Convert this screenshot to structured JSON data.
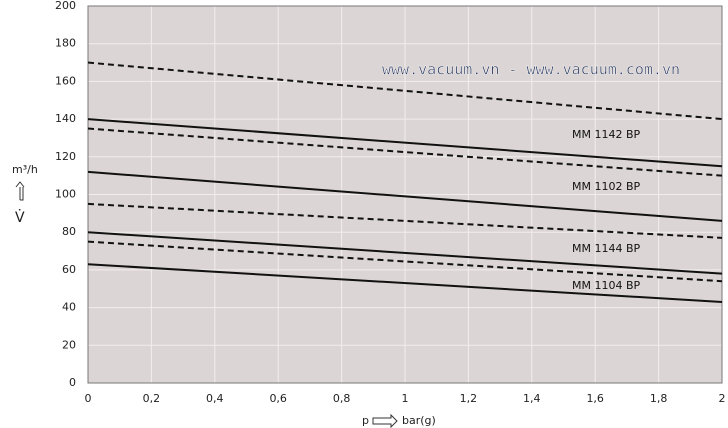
{
  "chart_data": {
    "type": "line",
    "x_label": "p",
    "x_unit": "bar(g)",
    "y_label": "m³/h",
    "y_symbol": "V̇",
    "watermark": "www.vacuum.vn - www.vacuum.com.vn",
    "x": [
      0,
      2
    ],
    "series": [
      {
        "color": "#111111",
        "style": "dashed",
        "values": [
          170,
          140
        ]
      },
      {
        "color": "#111111",
        "style": "solid",
        "values": [
          140,
          115
        ]
      },
      {
        "color": "#111111",
        "style": "dashed",
        "values": [
          135,
          110
        ]
      },
      {
        "color": "#111111",
        "style": "solid",
        "values": [
          112,
          86
        ]
      },
      {
        "color": "#111111",
        "style": "dashed",
        "values": [
          95,
          77
        ]
      },
      {
        "color": "#111111",
        "style": "solid",
        "values": [
          80,
          58
        ]
      },
      {
        "color": "#111111",
        "style": "dashed",
        "values": [
          75,
          54
        ]
      },
      {
        "color": "#111111",
        "style": "solid",
        "values": [
          63,
          43
        ]
      }
    ],
    "annotations": [
      "MM 1142 BP",
      "MM 1102 BP",
      "MM 1144 BP",
      "MM 1104 BP"
    ],
    "xlim": [
      0,
      2
    ],
    "xticks": [
      0,
      {
        "value": 0.2,
        "label": "0,2"
      },
      {
        "value": 0.4,
        "label": "0,4"
      },
      {
        "value": 0.6,
        "label": "0,6"
      },
      {
        "value": 0.8,
        "label": "0,8"
      },
      1,
      {
        "value": 1.2,
        "label": "1,2"
      },
      {
        "value": 1.4,
        "label": "1,4"
      },
      {
        "value": 1.6,
        "label": "1,6"
      },
      {
        "value": 1.8,
        "label": "1,8"
      },
      2
    ],
    "ylim": [
      0,
      200
    ],
    "yticks": [
      0,
      20,
      40,
      60,
      80,
      100,
      120,
      140,
      160,
      180,
      200
    ],
    "grid": true,
    "background": "#dcd5d5"
  }
}
